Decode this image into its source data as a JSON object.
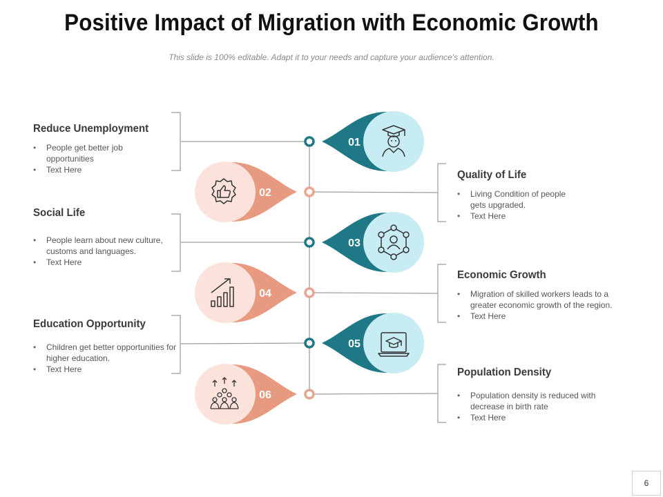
{
  "title": "Positive Impact of Migration with Economic Growth",
  "subtitle": "This slide is 100% editable. Adapt it to your needs and capture your audience's attention.",
  "page_number": "6",
  "colors": {
    "teal": "#1e7886",
    "teal_light": "#c8ecf3",
    "salmon": "#e89a80",
    "salmon_light": "#fbe3dc",
    "line": "#9a9a9a"
  },
  "steps": [
    {
      "number": "01",
      "icon": "graduate-icon",
      "heading": "Reduce Unemployment",
      "bullets": [
        "People get better job opportunities",
        "Text Here"
      ]
    },
    {
      "number": "02",
      "icon": "thumbs-up-badge-icon",
      "heading": "Quality of Life",
      "bullets": [
        "Living Condition of people gets upgraded.",
        "Text Here"
      ]
    },
    {
      "number": "03",
      "icon": "network-person-icon",
      "heading": "Social Life",
      "bullets": [
        "People learn about new culture, customs and languages.",
        "Text Here"
      ]
    },
    {
      "number": "04",
      "icon": "growth-chart-icon",
      "heading": "Economic Growth",
      "bullets": [
        "Migration of skilled workers leads to a greater economic growth of the region.",
        "Text Here"
      ]
    },
    {
      "number": "05",
      "icon": "laptop-education-icon",
      "heading": "Education Opportunity",
      "bullets": [
        "Children get better opportunities for higher education.",
        "Text Here"
      ]
    },
    {
      "number": "06",
      "icon": "population-crowd-icon",
      "heading": "Population Density",
      "bullets": [
        "Population density is reduced with decrease in birth rate",
        "Text Here"
      ]
    }
  ]
}
